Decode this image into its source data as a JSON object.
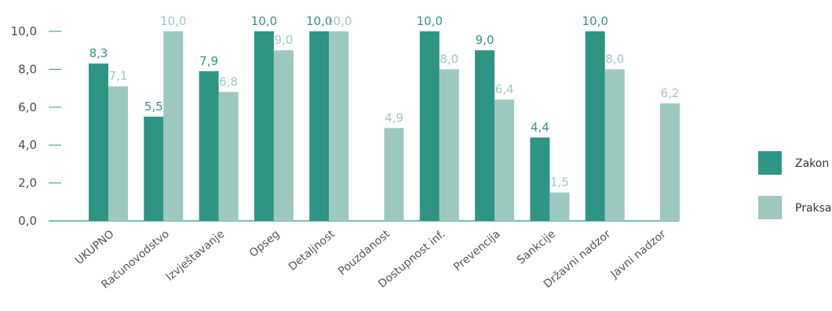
{
  "chart_data": {
    "type": "bar",
    "categories": [
      "UKUPNO",
      "Računovodstvo",
      "Izvještavanje",
      "Opseg",
      "Detaljnost",
      "Pouzdanost",
      "Dostupnost inf.",
      "Prevencija",
      "Sankcije",
      "Državni nadzor",
      "Javni nadzor"
    ],
    "series": [
      {
        "name": "Zakon",
        "color": "#2e9484",
        "values": [
          8.3,
          5.5,
          7.9,
          10.0,
          10.0,
          null,
          10.0,
          9.0,
          4.4,
          10.0,
          null
        ],
        "labels": [
          "8,3",
          "5,5",
          "7,9",
          "10,0",
          "10,0",
          "",
          "10,0",
          "9,0",
          "4,4",
          "10,0",
          ""
        ]
      },
      {
        "name": "Praksa",
        "color": "#9dc8bf",
        "values": [
          7.1,
          10.0,
          6.8,
          9.0,
          10.0,
          4.9,
          8.0,
          6.4,
          1.5,
          8.0,
          6.2
        ],
        "labels": [
          "7,1",
          "10,0",
          "6,8",
          "9,0",
          "10,0",
          "4,9",
          "8,0",
          "6,4",
          "1,5",
          "8,0",
          "6,2"
        ]
      }
    ],
    "ylim": [
      0,
      10
    ],
    "yticks": [
      {
        "value": 0,
        "label": "0,0"
      },
      {
        "value": 2,
        "label": "2,0"
      },
      {
        "value": 4,
        "label": "4,0"
      },
      {
        "value": 6,
        "label": "6,0"
      },
      {
        "value": 8,
        "label": "8,0"
      },
      {
        "value": 10,
        "label": "10,0"
      }
    ],
    "grid": false,
    "legend_position": "right",
    "axis_color": "#2e9484"
  }
}
